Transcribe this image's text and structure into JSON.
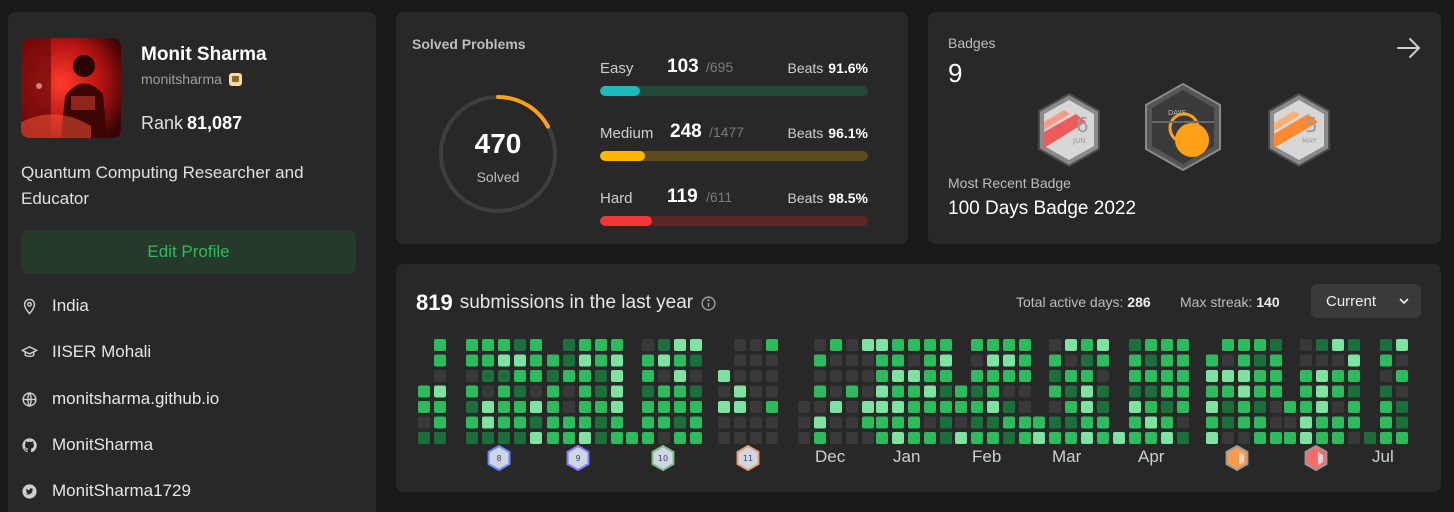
{
  "profile": {
    "name": "Monit Sharma",
    "username": "monitsharma",
    "rank_label": "Rank",
    "rank_value": "81,087",
    "bio": "Quantum Computing Researcher and Educator",
    "edit_label": "Edit Profile",
    "location": "India",
    "school": "IISER Mohali",
    "website": "monitsharma.github.io",
    "github": "MonitSharma",
    "twitter": "MonitSharma1729"
  },
  "solved": {
    "title": "Solved Problems",
    "total": "470",
    "total_label": "Solved",
    "progress_fraction": 0.17,
    "beats_label": "Beats",
    "difficulties": [
      {
        "name": "Easy",
        "count": "103",
        "total": "/695",
        "beats": "91.6%",
        "fill_fraction": 0.148,
        "color": "#1cbaba",
        "track": "#234b3a"
      },
      {
        "name": "Medium",
        "count": "248",
        "total": "/1477",
        "beats": "96.1%",
        "fill_fraction": 0.168,
        "color": "#ffb700",
        "track": "#5a4a1c"
      },
      {
        "name": "Hard",
        "count": "119",
        "total": "/611",
        "beats": "98.5%",
        "fill_fraction": 0.195,
        "color": "#f63737",
        "track": "#5a2626"
      }
    ]
  },
  "badges": {
    "title": "Badges",
    "count": "9",
    "recent_label": "Most Recent Badge",
    "recent_name": "100 Days Badge 2022",
    "items": [
      {
        "name": "June 2022 daily badge",
        "num": "6",
        "month": "JUN"
      },
      {
        "name": "100 days badge",
        "num": "",
        "month": "DAYS"
      },
      {
        "name": "May 2022 daily badge",
        "num": "5",
        "month": "MAY"
      }
    ]
  },
  "submissions": {
    "count": "819",
    "text": "submissions in the last year",
    "active_label": "Total active days:",
    "active_value": "286",
    "streak_label": "Max streak:",
    "streak_value": "140",
    "dropdown": "Current",
    "month_labels": [
      "Dec",
      "Jan",
      "Feb",
      "Mar",
      "Apr",
      "Jul"
    ],
    "badge_labels": [
      "8",
      "9",
      "10",
      "11"
    ]
  },
  "colors": {
    "accent_green": "#2cbb5d",
    "card_bg": "#282828",
    "page_bg": "#1a1a1a"
  }
}
